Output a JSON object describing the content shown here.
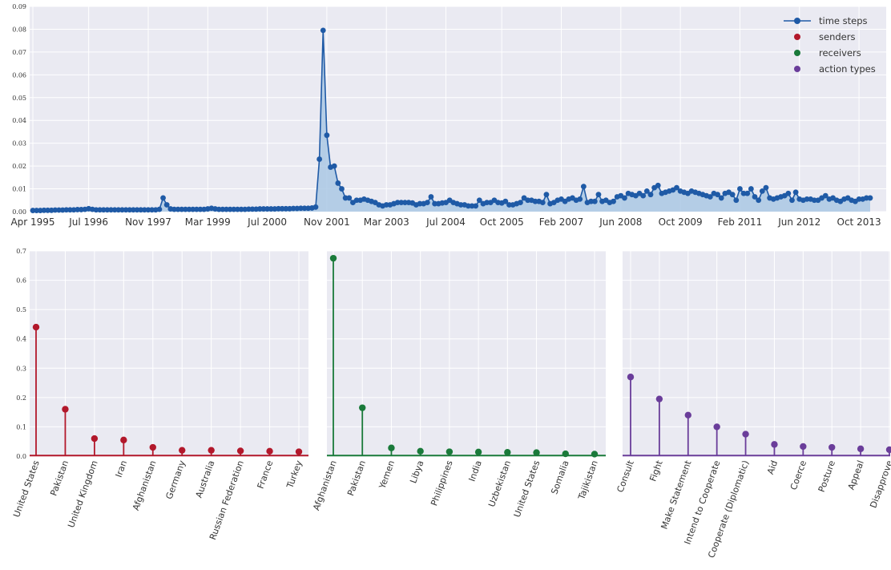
{
  "chart_data": [
    {
      "type": "area",
      "x_type": "date",
      "x_start": "1995-04",
      "x_step_months": 1,
      "ylim": [
        0,
        0.09
      ],
      "yticks": [
        "0.00",
        "0.01",
        "0.02",
        "0.03",
        "0.04",
        "0.05",
        "0.06",
        "0.07",
        "0.08",
        "0.09"
      ],
      "xticks": [
        "Apr 1995",
        "Jul 1996",
        "Nov 1997",
        "Mar 1999",
        "Jul 2000",
        "Nov 2001",
        "Mar 2003",
        "Jul 2004",
        "Oct 2005",
        "Feb 2007",
        "Jun 2008",
        "Oct 2009",
        "Feb 2011",
        "Jun 2012",
        "Oct 2013"
      ],
      "series": [
        {
          "name": "time steps",
          "values": [
            0.0005,
            0.0005,
            0.0005,
            0.0006,
            0.0006,
            0.0006,
            0.0007,
            0.0007,
            0.0007,
            0.0008,
            0.0008,
            0.0008,
            0.0009,
            0.0009,
            0.001,
            0.0013,
            0.001,
            0.0008,
            0.0008,
            0.0008,
            0.0008,
            0.0008,
            0.0008,
            0.0008,
            0.0008,
            0.0008,
            0.0008,
            0.0008,
            0.0008,
            0.0008,
            0.0008,
            0.0008,
            0.0008,
            0.0008,
            0.001,
            0.006,
            0.003,
            0.0012,
            0.001,
            0.001,
            0.001,
            0.001,
            0.001,
            0.001,
            0.001,
            0.001,
            0.001,
            0.0012,
            0.0015,
            0.0012,
            0.001,
            0.001,
            0.001,
            0.001,
            0.001,
            0.001,
            0.001,
            0.001,
            0.0011,
            0.0011,
            0.0011,
            0.0012,
            0.0012,
            0.0012,
            0.0012,
            0.0012,
            0.0013,
            0.0013,
            0.0013,
            0.0013,
            0.0014,
            0.0014,
            0.0015,
            0.0015,
            0.0015,
            0.0016,
            0.002,
            0.023,
            0.0795,
            0.0335,
            0.0195,
            0.02,
            0.0125,
            0.01,
            0.006,
            0.006,
            0.004,
            0.005,
            0.005,
            0.0055,
            0.005,
            0.0045,
            0.004,
            0.003,
            0.0025,
            0.003,
            0.003,
            0.0035,
            0.004,
            0.004,
            0.004,
            0.004,
            0.0038,
            0.003,
            0.0035,
            0.0035,
            0.004,
            0.0065,
            0.0035,
            0.0035,
            0.0038,
            0.004,
            0.005,
            0.004,
            0.0035,
            0.003,
            0.003,
            0.0025,
            0.0025,
            0.0025,
            0.005,
            0.0035,
            0.004,
            0.004,
            0.005,
            0.004,
            0.0038,
            0.0045,
            0.003,
            0.003,
            0.0035,
            0.004,
            0.006,
            0.005,
            0.005,
            0.0045,
            0.0045,
            0.004,
            0.0075,
            0.0035,
            0.004,
            0.005,
            0.0055,
            0.0045,
            0.0055,
            0.006,
            0.005,
            0.0055,
            0.011,
            0.004,
            0.0045,
            0.0045,
            0.0075,
            0.0045,
            0.005,
            0.004,
            0.0045,
            0.0065,
            0.007,
            0.006,
            0.008,
            0.0075,
            0.007,
            0.008,
            0.007,
            0.009,
            0.0075,
            0.0105,
            0.0115,
            0.008,
            0.0085,
            0.009,
            0.0095,
            0.0105,
            0.009,
            0.0085,
            0.008,
            0.009,
            0.0085,
            0.008,
            0.0075,
            0.007,
            0.0065,
            0.008,
            0.0075,
            0.006,
            0.008,
            0.0085,
            0.0075,
            0.005,
            0.01,
            0.008,
            0.008,
            0.01,
            0.0065,
            0.005,
            0.009,
            0.0105,
            0.006,
            0.0055,
            0.006,
            0.0065,
            0.007,
            0.008,
            0.005,
            0.0085,
            0.0055,
            0.005,
            0.0055,
            0.0055,
            0.005,
            0.005,
            0.006,
            0.007,
            0.0055,
            0.006,
            0.005,
            0.0045,
            0.0055,
            0.006,
            0.005,
            0.0045,
            0.0055,
            0.0055,
            0.006,
            0.006
          ]
        }
      ],
      "legend": {
        "placement": "top-right",
        "entries": [
          {
            "name": "time steps",
            "color": "#1f5aa6",
            "marker": "line-dot"
          },
          {
            "name": "senders",
            "color": "#b2182b",
            "marker": "dot"
          },
          {
            "name": "receivers",
            "color": "#1a7a3a",
            "marker": "dot"
          },
          {
            "name": "action types",
            "color": "#6a3d9a",
            "marker": "dot"
          }
        ]
      },
      "line_color": "#1f5aa6",
      "fill_color": "#aac8e4",
      "grid": true
    },
    {
      "type": "stem",
      "ylim": [
        0,
        0.7
      ],
      "yticks": [
        "0.0",
        "0.1",
        "0.2",
        "0.3",
        "0.4",
        "0.5",
        "0.6",
        "0.7"
      ],
      "color": "#b2182b",
      "categories": [
        "United States",
        "Pakistan",
        "United Kingdom",
        "Iran",
        "Afghanistan",
        "Germany",
        "Australia",
        "Russian Federation",
        "France",
        "Turkey"
      ],
      "values": [
        0.44,
        0.16,
        0.06,
        0.055,
        0.03,
        0.02,
        0.02,
        0.018,
        0.017,
        0.015
      ],
      "grid": true
    },
    {
      "type": "stem",
      "ylim": [
        0,
        0.7
      ],
      "color": "#1a7a3a",
      "categories": [
        "Afghanistan",
        "Pakistan",
        "Yemen",
        "Libya",
        "Philippines",
        "India",
        "Uzbekistan",
        "United States",
        "Somalia",
        "Tajikistan"
      ],
      "values": [
        0.675,
        0.165,
        0.028,
        0.017,
        0.015,
        0.014,
        0.013,
        0.012,
        0.008,
        0.007
      ],
      "grid": true
    },
    {
      "type": "stem",
      "ylim": [
        0,
        0.7
      ],
      "color": "#6a3d9a",
      "categories": [
        "Consult",
        "Fight",
        "Make Statement",
        "Intend to Cooperate",
        "Cooperate (Diplomatic)",
        "Aid",
        "Coerce",
        "Posture",
        "Appeal",
        "Disapprove"
      ],
      "values": [
        0.27,
        0.195,
        0.14,
        0.1,
        0.075,
        0.04,
        0.033,
        0.03,
        0.025,
        0.022
      ],
      "grid": true
    }
  ]
}
